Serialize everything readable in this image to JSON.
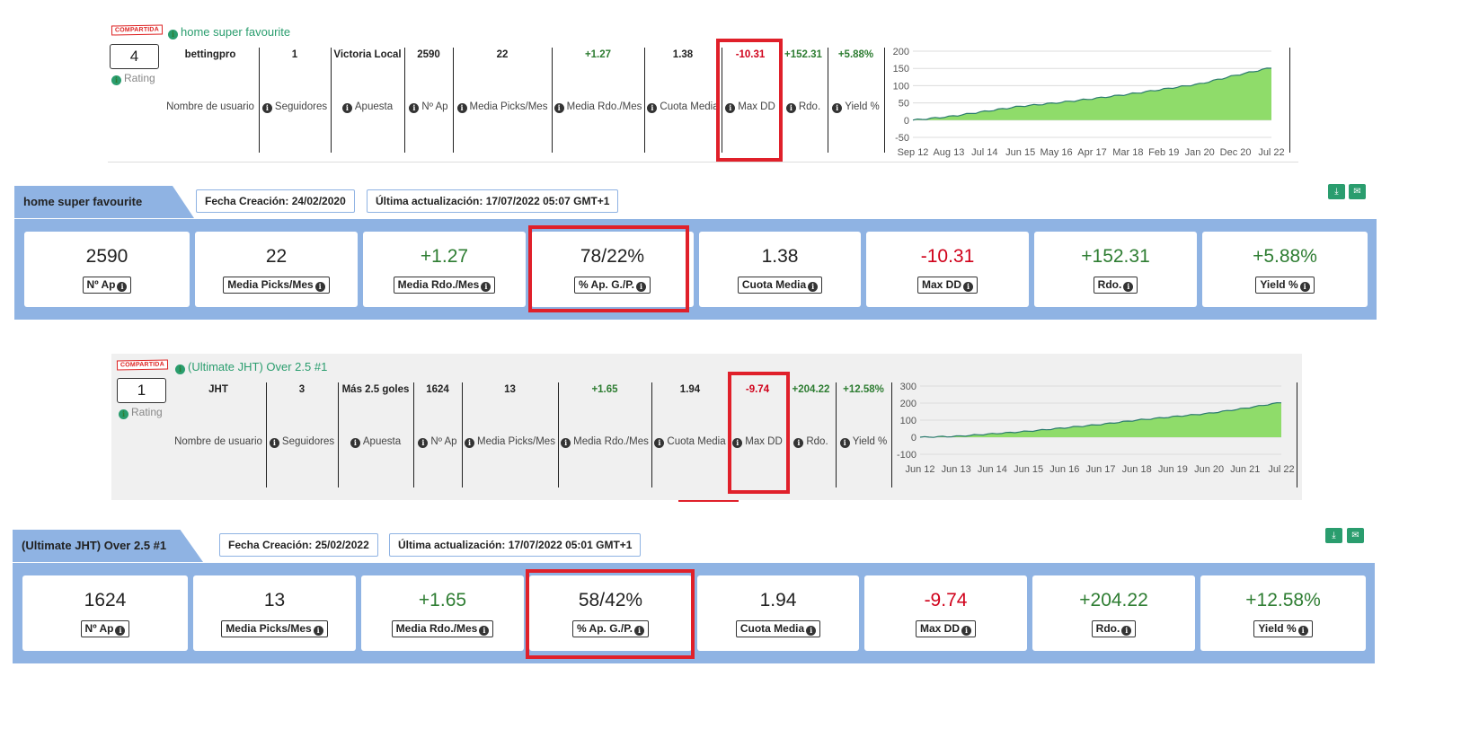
{
  "labels": {
    "rating": "Rating",
    "username": "Nombre de usuario",
    "followers": "Seguidores",
    "bet": "Apuesta",
    "n_ap": "Nº Ap",
    "picks": "Media Picks/Mes",
    "rdo_mes": "Media Rdo./Mes",
    "cuota": "Cuota Media",
    "maxdd": "Max DD",
    "rdo": "Rdo.",
    "yield": "Yield %",
    "shared_badge": "COMPARTIDA"
  },
  "card_labels": {
    "n_ap": "Nº Ap",
    "picks": "Media Picks/Mes",
    "rdo_mes": "Media Rdo./Mes",
    "pct": "% Ap. G./P.",
    "cuota": "Cuota Media",
    "maxdd": "Max DD",
    "rdo": "Rdo.",
    "yield": "Yield %"
  },
  "tipsters": [
    {
      "name": "home super favourite",
      "rating": "4",
      "username": "bettingpro",
      "followers": "1",
      "bet": "Victoria Local",
      "n_ap": "2590",
      "picks": "22",
      "rdo_mes": "+1.27",
      "cuota": "1.38",
      "maxdd": "-10.31",
      "rdo": "+152.31",
      "yield": "+5.88%",
      "pct": "78/22%",
      "created": "Fecha Creación: 24/02/2020",
      "updated": "Última actualización: 17/07/2022 05:07 GMT+1"
    },
    {
      "name": "(Ultimate JHT) Over 2.5 #1",
      "rating": "1",
      "username": "JHT",
      "followers": "3",
      "bet": "Más 2.5 goles",
      "n_ap": "1624",
      "picks": "13",
      "rdo_mes": "+1.65",
      "cuota": "1.94",
      "maxdd": "-9.74",
      "rdo": "+204.22",
      "yield": "+12.58%",
      "pct": "58/42%",
      "created": "Fecha Creación: 25/02/2022",
      "updated": "Última actualización: 17/07/2022 05:01 GMT+1"
    }
  ],
  "chart_data": [
    {
      "type": "area",
      "x": [
        "Sep 12",
        "Aug 13",
        "Jul 14",
        "Jun 15",
        "May 16",
        "Apr 17",
        "Mar 18",
        "Feb 19",
        "Jan 20",
        "Dec 20",
        "Jul 22"
      ],
      "ylim": [
        -50,
        200
      ],
      "yticks": [
        "200",
        "150",
        "100",
        "50",
        "0",
        "-50"
      ],
      "values": [
        0,
        10,
        25,
        40,
        50,
        62,
        75,
        90,
        105,
        130,
        152
      ],
      "fill_color": "#8fdc6a",
      "line_color": "#2a7a6e"
    },
    {
      "type": "area",
      "x": [
        "Jun 12",
        "Jun 13",
        "Jun 14",
        "Jun 15",
        "Jun 16",
        "Jun 17",
        "Jun 18",
        "Jun 19",
        "Jun 20",
        "Jun 21",
        "Jul 22"
      ],
      "ylim": [
        -100,
        300
      ],
      "yticks": [
        "300",
        "200",
        "100",
        "0",
        "-100"
      ],
      "values": [
        0,
        5,
        20,
        35,
        55,
        75,
        100,
        120,
        140,
        170,
        204
      ],
      "fill_color": "#8fdc6a",
      "line_color": "#2a7a6e"
    }
  ]
}
